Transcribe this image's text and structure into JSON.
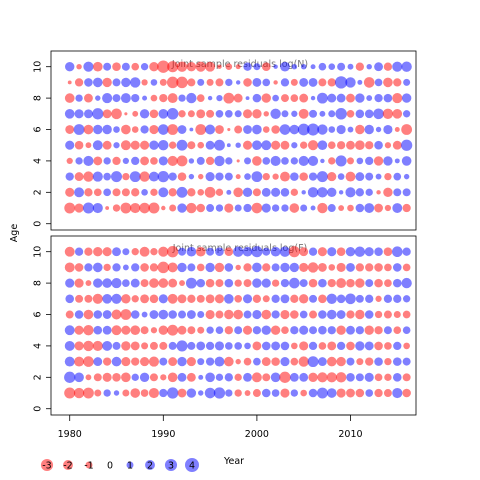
{
  "chart_data": {
    "type": "scatter",
    "subtype": "bubble",
    "xlabel": "Year",
    "ylabel": "Age",
    "xlim": [
      1978,
      2017
    ],
    "x_ticks": [
      1980,
      1990,
      2000,
      2010
    ],
    "y_ticks": [
      0,
      2,
      4,
      6,
      8,
      10
    ],
    "grid": false,
    "colors": {
      "positive": "#0000ff",
      "negative": "#ff0000"
    },
    "bubble_alpha": 0.5,
    "years": {
      "start": 1980,
      "end": 2016
    },
    "ages": {
      "start": 1,
      "end": 10
    },
    "panels": [
      {
        "title": "Joint sample residuals log(N)",
        "ylim": [
          -0.4,
          11
        ],
        "residuals": [
          [
            -2.4,
            -1.7,
            1.4,
            -0.8,
            1.7,
            -1.6,
            1.9,
            -1.9,
            -0.3,
            1.8
          ],
          [
            -1.7,
            2.0,
            -1.6,
            1.1,
            -1.5,
            2.4,
            1.7,
            1.1,
            -1.4,
            -0.6
          ],
          [
            2.5,
            -1.4,
            -2.2,
            2.1,
            -0.7,
            -1.9,
            1.6,
            -1.6,
            1.5,
            2.1
          ],
          [
            2.1,
            -1.2,
            2.1,
            -1.6,
            2.0,
            1.8,
            2.6,
            0.6,
            1.9,
            -1.9
          ],
          [
            -0.3,
            1.2,
            1.2,
            1.1,
            -1.6,
            1.8,
            -1.6,
            2.1,
            -1.8,
            1.3
          ],
          [
            -1.1,
            -1.3,
            2.5,
            -1.4,
            0.8,
            0.9,
            -2.3,
            1.3,
            1.3,
            -1.5
          ],
          [
            -2.4,
            -1.3,
            -1.1,
            0.8,
            -2.0,
            -1.9,
            -0.2,
            2.0,
            1.8,
            1.3
          ],
          [
            -2.1,
            -1.4,
            2.4,
            1.4,
            -1.7,
            -0.9,
            -0.7,
            1.4,
            2.2,
            -1.2
          ],
          [
            -2.3,
            0.9,
            -2.2,
            -1.6,
            -1.7,
            1.4,
            1.8,
            0.5,
            -0.8,
            1.1
          ],
          [
            -2.5,
            -1.1,
            2.0,
            -1.2,
            1.8,
            -1.7,
            -1.5,
            -0.9,
            0.9,
            -1.8
          ],
          [
            -0.4,
            2.0,
            2.6,
            1.7,
            2.2,
            2.3,
            1.9,
            -1.4,
            -1.0,
            -3.1
          ],
          [
            -1.0,
            -1.4,
            1.4,
            -2.1,
            -1.1,
            -2.4,
            2.7,
            -2.0,
            -2.7,
            -2.5
          ],
          [
            1.8,
            2.4,
            -1.5,
            -2.4,
            2.4,
            1.6,
            -1.1,
            1.1,
            -2.7,
            -2.2
          ],
          [
            -2.2,
            -1.4,
            0.6,
            0.6,
            -1.3,
            0.3,
            -1.0,
            2.2,
            -1.3,
            -1.8
          ],
          [
            -1.5,
            -0.9,
            -0.6,
            1.3,
            -0.9,
            -2.4,
            -1.6,
            -1.2,
            1.0,
            -2.1
          ],
          [
            1.3,
            -2.4,
            1.7,
            -1.4,
            1.6,
            2.0,
            -1.3,
            0.4,
            -1.0,
            -2.0
          ],
          [
            1.1,
            -1.1,
            1.4,
            2.2,
            2.4,
            -1.6,
            1.2,
            0.8,
            -1.3,
            -0.4
          ],
          [
            -1.7,
            0.5,
            1.3,
            1.1,
            0.3,
            -0.2,
            1.2,
            -2.4,
            1.1,
            -0.9
          ],
          [
            1.0,
            -1.9,
            -0.5,
            -0.2,
            0.6,
            -1.3,
            1.0,
            -1.6,
            0.4,
            -0.5
          ],
          [
            1.4,
            1.8,
            0.9,
            1.0,
            -1.7,
            1.6,
            -1.7,
            0.3,
            -1.5,
            1.4
          ],
          [
            -2.3,
            -1.3,
            2.4,
            -1.9,
            1.9,
            1.9,
            -1.8,
            1.5,
            1.6,
            1.0
          ],
          [
            1.7,
            1.6,
            -1.1,
            1.2,
            2.0,
            -0.9,
            -0.6,
            -1.8,
            1.2,
            -1.5
          ],
          [
            1.1,
            1.7,
            -0.8,
            2.1,
            -1.7,
            -1.5,
            2.2,
            0.9,
            -0.4,
            0.4
          ],
          [
            1.1,
            1.5,
            -2.0,
            1.2,
            -1.6,
            2.3,
            1.0,
            -1.3,
            1.4,
            1.9
          ],
          [
            -1.9,
            -1.1,
            1.5,
            1.1,
            0.8,
            1.9,
            0.8,
            -1.2,
            -1.0,
            0.6
          ],
          [
            1.0,
            0.4,
            -1.5,
            2.1,
            -1.1,
            2.8,
            -2.0,
            -1.6,
            1.6,
            0.6
          ],
          [
            0.5,
            2.2,
            1.4,
            2.1,
            -2.1,
            3.0,
            1.3,
            0.4,
            1.6,
            0.5
          ],
          [
            -2.2,
            2.2,
            2.5,
            0.4,
            1.9,
            2.2,
            0.7,
            2.4,
            -1.3,
            1.2
          ],
          [
            1.3,
            1.8,
            -1.7,
            -1.1,
            -1.2,
            0.9,
            1.0,
            1.6,
            -1.4,
            0.9
          ],
          [
            -0.7,
            0.4,
            0.9,
            2.5,
            -1.4,
            1.7,
            2.7,
            1.6,
            3.1,
            1.3
          ],
          [
            -0.9,
            2.1,
            -2.0,
            -1.0,
            -1.6,
            0.7,
            -1.2,
            -1.6,
            2.2,
            0.7
          ],
          [
            1.5,
            1.4,
            1.6,
            0.9,
            -1.9,
            -1.8,
            1.5,
            1.8,
            0.5,
            -1.4
          ],
          [
            2.0,
            1.1,
            1.3,
            1.4,
            -1.4,
            1.8,
            1.5,
            0.7,
            -2.3,
            0.6
          ],
          [
            -1.6,
            -0.4,
            0.7,
            -1.8,
            1.5,
            0.6,
            2.3,
            1.4,
            1.2,
            1.6
          ],
          [
            -0.8,
            -1.8,
            -1.1,
            1.8,
            -0.8,
            1.7,
            -2.2,
            1.5,
            -1.9,
            -1.4
          ],
          [
            2.0,
            1.3,
            1.2,
            0.5,
            -1.6,
            -0.5,
            -1.9,
            -2.1,
            -1.4,
            2.1
          ],
          [
            -1.4,
            1.3,
            0.6,
            1.9,
            2.6,
            -2.4,
            1.1,
            1.8,
            1.0,
            2.2
          ]
        ]
      },
      {
        "title": "Joint sample residuals log(F)",
        "ylim": [
          -0.4,
          11
        ],
        "residuals": [
          [
            -2.5,
            2.6,
            2.0,
            2.0,
            2.0,
            -1.3,
            1.5,
            1.7,
            -2.0,
            -2.0
          ],
          [
            -2.2,
            1.9,
            -2.0,
            -1.7,
            -1.7,
            1.5,
            -1.3,
            -1.7,
            -1.5,
            1.4
          ],
          [
            -2.4,
            -0.7,
            -2.3,
            -2.2,
            -2.2,
            -1.9,
            -1.3,
            -0.7,
            1.4,
            -1.4
          ],
          [
            -1.0,
            -1.3,
            1.6,
            -2.1,
            1.5,
            1.5,
            -2.1,
            1.8,
            1.9,
            -1.8
          ],
          [
            1.1,
            -1.7,
            -1.4,
            2.0,
            1.6,
            1.6,
            1.9,
            1.9,
            -1.1,
            -1.7
          ],
          [
            0.6,
            -1.5,
            1.9,
            1.3,
            -2.0,
            -2.0,
            2.1,
            2.1,
            1.4,
            1.6
          ],
          [
            -1.0,
            -1.9,
            -1.7,
            -1.8,
            -1.7,
            -2.4,
            -1.8,
            1.2,
            0.7,
            1.0
          ],
          [
            -1.9,
            1.1,
            -1.4,
            -1.6,
            -1.9,
            1.5,
            -1.1,
            1.6,
            1.4,
            -1.1
          ],
          [
            -1.2,
            1.8,
            -1.7,
            -1.0,
            -1.3,
            0.7,
            -1.6,
            -1.3,
            -1.5,
            -2.0
          ],
          [
            -2.1,
            -1.3,
            -2.1,
            -1.3,
            -0.8,
            1.6,
            -1.5,
            -1.9,
            -1.4,
            -1.1
          ],
          [
            1.4,
            -0.8,
            1.3,
            -1.3,
            -1.8,
            1.9,
            1.7,
            -1.9,
            -2.7,
            -2.1
          ],
          [
            2.6,
            -1.9,
            -1.6,
            1.3,
            -2.4,
            1.5,
            -2.0,
            -1.6,
            -2.0,
            -2.6
          ],
          [
            -1.6,
            1.6,
            1.8,
            2.5,
            -1.6,
            1.3,
            -1.6,
            -0.7,
            1.8,
            1.3
          ],
          [
            1.8,
            -1.6,
            -1.7,
            1.3,
            -1.3,
            1.6,
            -1.4,
            2.4,
            1.3,
            1.9
          ],
          [
            0.6,
            0.5,
            1.0,
            1.6,
            -1.0,
            1.0,
            -1.3,
            1.5,
            -1.2,
            -1.9
          ],
          [
            2.3,
            1.9,
            1.4,
            1.4,
            1.1,
            -1.7,
            -1.6,
            -1.5,
            1.8,
            1.3
          ],
          [
            2.6,
            1.1,
            2.0,
            1.7,
            1.2,
            -1.3,
            -1.7,
            -1.3,
            -1.8,
            1.5
          ],
          [
            1.1,
            1.4,
            -1.9,
            1.2,
            -1.4,
            -1.8,
            1.9,
            1.5,
            1.5,
            -1.5
          ],
          [
            -1.1,
            -1.1,
            -0.6,
            1.2,
            1.3,
            -1.9,
            -1.2,
            -1.1,
            -0.6,
            2.2
          ],
          [
            -0.7,
            1.6,
            -1.2,
            0.9,
            -1.7,
            1.3,
            1.7,
            -1.3,
            -1.4,
            1.9
          ],
          [
            -1.3,
            -2.0,
            1.2,
            -1.6,
            1.4,
            1.7,
            -1.4,
            1.8,
            1.9,
            2.5
          ],
          [
            1.5,
            -1.3,
            -1.6,
            1.5,
            1.8,
            -1.9,
            -1.0,
            1.7,
            -1.4,
            1.3
          ],
          [
            1.2,
            1.9,
            -1.5,
            1.6,
            -1.8,
            1.4,
            1.4,
            -1.1,
            1.3,
            1.9
          ],
          [
            -1.7,
            -2.6,
            1.7,
            1.5,
            -1.2,
            -1.7,
            1.6,
            1.4,
            1.8,
            2.2
          ],
          [
            1.1,
            1.6,
            -1.2,
            -0.9,
            1.4,
            -1.5,
            -1.4,
            2.3,
            1.8,
            -2.5
          ],
          [
            -0.9,
            1.6,
            -2.2,
            -1.7,
            1.7,
            1.2,
            -1.8,
            1.3,
            -1.7,
            -1.6
          ],
          [
            1.5,
            -1.8,
            2.4,
            1.4,
            1.3,
            -1.3,
            1.3,
            -1.5,
            -2.2,
            1.4
          ],
          [
            2.4,
            -2.1,
            1.6,
            -1.2,
            1.5,
            1.5,
            -1.5,
            1.5,
            -1.6,
            -1.7
          ],
          [
            1.9,
            -2.1,
            -1.9,
            -1.6,
            1.4,
            1.9,
            2.2,
            -1.4,
            -0.9,
            1.7
          ],
          [
            -1.7,
            -2.2,
            -1.8,
            1.4,
            -1.8,
            1.6,
            1.5,
            -2.0,
            -1.7,
            -1.5
          ],
          [
            -1.6,
            1.5,
            1.3,
            -1.5,
            1.6,
            -1.4,
            2.3,
            -1.5,
            1.6,
            1.8
          ],
          [
            -1.5,
            1.3,
            -1.0,
            1.8,
            1.4,
            -1.8,
            1.3,
            -1.8,
            -1.4,
            2.2
          ],
          [
            1.2,
            1.7,
            -1.4,
            1.6,
            -1.8,
            1.5,
            1.4,
            1.3,
            -1.4,
            1.7
          ],
          [
            -1.4,
            -1.2,
            1.5,
            -1.5,
            -1.4,
            -1.1,
            -0.8,
            -1.5,
            -1.5,
            1.5
          ],
          [
            -1.3,
            -1.1,
            -1.1,
            -1.2,
            1.3,
            -1.3,
            1.4,
            -1.2,
            -1.2,
            -1.5
          ],
          [
            2.1,
            1.5,
            1.5,
            1.4,
            -1.2,
            -1.0,
            1.4,
            1.5,
            1.5,
            2.3
          ],
          [
            -1.5,
            -1.3,
            1.3,
            -0.9,
            1.2,
            -1.2,
            1.1,
            2.2,
            -1.2,
            1.4
          ]
        ]
      }
    ],
    "legend": {
      "position": "bottom-left",
      "values": [
        -3,
        -2,
        -1,
        0,
        1,
        2,
        3,
        4
      ],
      "labels": [
        "-3",
        "-2",
        "-1",
        "0",
        "1",
        "2",
        "3",
        "4"
      ]
    }
  }
}
